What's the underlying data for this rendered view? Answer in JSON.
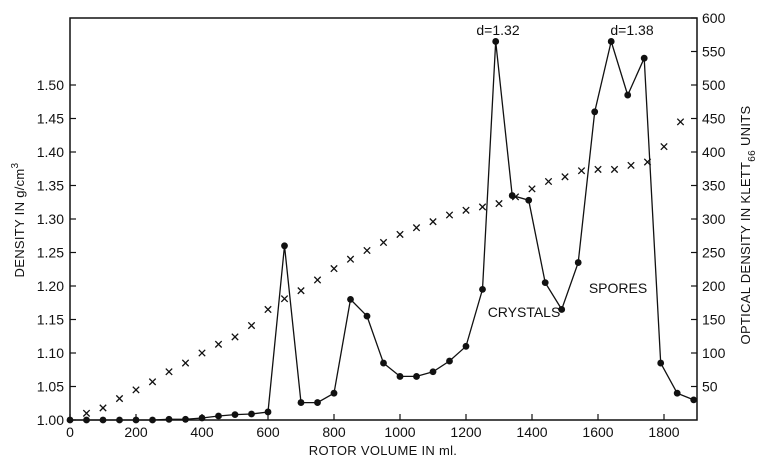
{
  "chart_data": {
    "type": "scatter",
    "xlabel": "ROTOR VOLUME IN ml.",
    "ylabel_left": "DENSITY IN g/cm",
    "ylabel_left_sup": "3",
    "ylabel_right": "OPTICAL DENSITY IN KLETT",
    "ylabel_right_sub": "66",
    "ylabel_right_suffix": " UNITS",
    "xlim": [
      0,
      1900
    ],
    "ylim_left": [
      1.0,
      1.6
    ],
    "ylim_right": [
      0,
      600
    ],
    "x_ticks": [
      "0",
      "200",
      "400",
      "600",
      "800",
      "1000",
      "1200",
      "1400",
      "1600",
      "1800"
    ],
    "y_left_ticks": [
      "1.00",
      "1.05",
      "1.10",
      "1.15",
      "1.20",
      "1.25",
      "1.30",
      "1.35",
      "1.40",
      "1.45",
      "1.50"
    ],
    "y_right_ticks": [
      "50",
      "100",
      "150",
      "200",
      "250",
      "300",
      "350",
      "400",
      "450",
      "500",
      "550",
      "600"
    ],
    "series": [
      {
        "marker": "dot-line",
        "axis": "right",
        "x": [
          0,
          50,
          100,
          150,
          200,
          250,
          300,
          350,
          400,
          450,
          500,
          550,
          600,
          650,
          700,
          750,
          800,
          850,
          900,
          950,
          1000,
          1050,
          1100,
          1150,
          1200,
          1250,
          1290,
          1340,
          1390,
          1440,
          1490,
          1540,
          1590,
          1640,
          1690,
          1740,
          1790,
          1840,
          1890
        ],
        "values": [
          0,
          0,
          0,
          0,
          0,
          0,
          1,
          1,
          3,
          6,
          8,
          9,
          12,
          260,
          26,
          26,
          40,
          180,
          155,
          85,
          65,
          65,
          72,
          88,
          110,
          195,
          565,
          335,
          328,
          205,
          165,
          235,
          460,
          565,
          485,
          540,
          85,
          40,
          30
        ]
      },
      {
        "marker": "x",
        "axis": "left",
        "x": [
          50,
          100,
          150,
          200,
          250,
          300,
          350,
          400,
          450,
          500,
          550,
          600,
          650,
          700,
          750,
          800,
          850,
          900,
          950,
          1000,
          1050,
          1100,
          1150,
          1200,
          1250,
          1300,
          1350,
          1400,
          1450,
          1500,
          1550,
          1600,
          1650,
          1700,
          1750,
          1800,
          1850
        ],
        "values": [
          1.01,
          1.018,
          1.032,
          1.045,
          1.057,
          1.072,
          1.085,
          1.1,
          1.113,
          1.124,
          1.141,
          1.165,
          1.181,
          1.193,
          1.209,
          1.226,
          1.24,
          1.253,
          1.265,
          1.277,
          1.287,
          1.296,
          1.306,
          1.313,
          1.318,
          1.323,
          1.333,
          1.345,
          1.356,
          1.363,
          1.372,
          1.374,
          1.374,
          1.38,
          1.385,
          1.408,
          1.445
        ]
      }
    ],
    "annotations": [
      "d=1.32",
      "d=1.38",
      "CRYSTALS",
      "SPORES"
    ]
  }
}
